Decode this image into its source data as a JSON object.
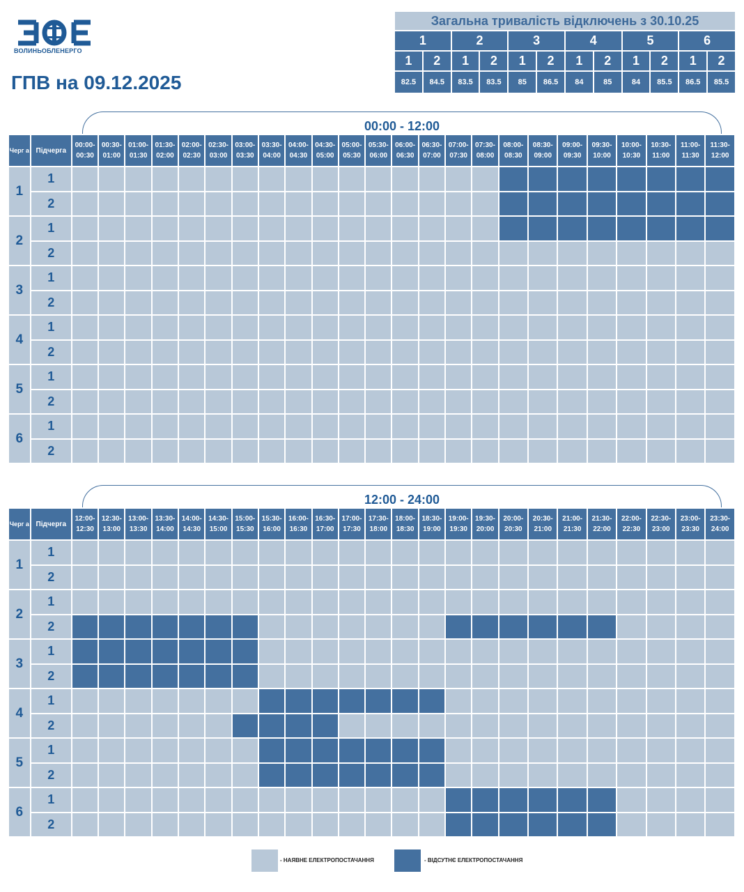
{
  "header": {
    "logo_letters": "ВОЕ",
    "logo_text": "ВОЛИНЬОБЛЕНЕРГО",
    "title": "ГПВ на 09.12.2025"
  },
  "colors": {
    "powered": "#b8c8d8",
    "outage": "#44709f",
    "brand": "#1f5a96"
  },
  "summary": {
    "title": "Загальна тривалість відключень з 30.10.25",
    "queues": [
      "1",
      "2",
      "3",
      "4",
      "5",
      "6"
    ],
    "subqueues": [
      "1",
      "2",
      "1",
      "2",
      "1",
      "2",
      "1",
      "2",
      "1",
      "2",
      "1",
      "2"
    ],
    "values": [
      "82.5",
      "84.5",
      "83.5",
      "83.5",
      "85",
      "86.5",
      "84",
      "85",
      "84",
      "85.5",
      "86.5",
      "85.5"
    ]
  },
  "grid_labels": {
    "queue_header": "Черг а",
    "subqueue_header": "Підчерга"
  },
  "sections": [
    {
      "label": "00:00 - 12:00",
      "slots": [
        [
          "00:00-",
          "00:30"
        ],
        [
          "00:30-",
          "01:00"
        ],
        [
          "01:00-",
          "01:30"
        ],
        [
          "01:30-",
          "02:00"
        ],
        [
          "02:00-",
          "02:30"
        ],
        [
          "02:30-",
          "03:00"
        ],
        [
          "03:00-",
          "03:30"
        ],
        [
          "03:30-",
          "04:00"
        ],
        [
          "04:00-",
          "04:30"
        ],
        [
          "04:30-",
          "05:00"
        ],
        [
          "05:00-",
          "05:30"
        ],
        [
          "05:30-",
          "06:00"
        ],
        [
          "06:00-",
          "06:30"
        ],
        [
          "06:30-",
          "07:00"
        ],
        [
          "07:00-",
          "07:30"
        ],
        [
          "07:30-",
          "08:00"
        ],
        [
          "08:00-",
          "08:30"
        ],
        [
          "08:30-",
          "09:00"
        ],
        [
          "09:00-",
          "09:30"
        ],
        [
          "09:30-",
          "10:00"
        ],
        [
          "10:00-",
          "10:30"
        ],
        [
          "10:30-",
          "11:00"
        ],
        [
          "11:00-",
          "11:30"
        ],
        [
          "11:30-",
          "12:00"
        ]
      ],
      "rows": [
        {
          "q": "1",
          "s": "1",
          "off": [
            16,
            17,
            18,
            19,
            20,
            21,
            22,
            23
          ]
        },
        {
          "q": "1",
          "s": "2",
          "off": [
            16,
            17,
            18,
            19,
            20,
            21,
            22,
            23
          ]
        },
        {
          "q": "2",
          "s": "1",
          "off": [
            16,
            17,
            18,
            19,
            20,
            21,
            22,
            23
          ]
        },
        {
          "q": "2",
          "s": "2",
          "off": []
        },
        {
          "q": "3",
          "s": "1",
          "off": []
        },
        {
          "q": "3",
          "s": "2",
          "off": []
        },
        {
          "q": "4",
          "s": "1",
          "off": []
        },
        {
          "q": "4",
          "s": "2",
          "off": []
        },
        {
          "q": "5",
          "s": "1",
          "off": []
        },
        {
          "q": "5",
          "s": "2",
          "off": []
        },
        {
          "q": "6",
          "s": "1",
          "off": []
        },
        {
          "q": "6",
          "s": "2",
          "off": []
        }
      ]
    },
    {
      "label": "12:00 - 24:00",
      "slots": [
        [
          "12:00-",
          "12:30"
        ],
        [
          "12:30-",
          "13:00"
        ],
        [
          "13:00-",
          "13:30"
        ],
        [
          "13:30-",
          "14:00"
        ],
        [
          "14:00-",
          "14:30"
        ],
        [
          "14:30-",
          "15:00"
        ],
        [
          "15:00-",
          "15:30"
        ],
        [
          "15:30-",
          "16:00"
        ],
        [
          "16:00-",
          "16:30"
        ],
        [
          "16:30-",
          "17:00"
        ],
        [
          "17:00-",
          "17:30"
        ],
        [
          "17:30-",
          "18:00"
        ],
        [
          "18:00-",
          "18:30"
        ],
        [
          "18:30-",
          "19:00"
        ],
        [
          "19:00-",
          "19:30"
        ],
        [
          "19:30-",
          "20:00"
        ],
        [
          "20:00-",
          "20:30"
        ],
        [
          "20:30-",
          "21:00"
        ],
        [
          "21:00-",
          "21:30"
        ],
        [
          "21:30-",
          "22:00"
        ],
        [
          "22:00-",
          "22:30"
        ],
        [
          "22:30-",
          "23:00"
        ],
        [
          "23:00-",
          "23:30"
        ],
        [
          "23:30-",
          "24:00"
        ]
      ],
      "rows": [
        {
          "q": "1",
          "s": "1",
          "off": []
        },
        {
          "q": "1",
          "s": "2",
          "off": []
        },
        {
          "q": "2",
          "s": "1",
          "off": []
        },
        {
          "q": "2",
          "s": "2",
          "off": [
            0,
            1,
            2,
            3,
            4,
            5,
            6,
            14,
            15,
            16,
            17,
            18,
            19
          ]
        },
        {
          "q": "3",
          "s": "1",
          "off": [
            0,
            1,
            2,
            3,
            4,
            5,
            6
          ]
        },
        {
          "q": "3",
          "s": "2",
          "off": [
            0,
            1,
            2,
            3,
            4,
            5,
            6
          ]
        },
        {
          "q": "4",
          "s": "1",
          "off": [
            7,
            8,
            9,
            10,
            11,
            12,
            13
          ]
        },
        {
          "q": "4",
          "s": "2",
          "off": [
            6,
            7,
            8,
            9
          ]
        },
        {
          "q": "5",
          "s": "1",
          "off": [
            7,
            8,
            9,
            10,
            11,
            12,
            13
          ]
        },
        {
          "q": "5",
          "s": "2",
          "off": [
            7,
            8,
            9,
            10,
            11,
            12,
            13
          ]
        },
        {
          "q": "6",
          "s": "1",
          "off": [
            14,
            15,
            16,
            17,
            18,
            19
          ]
        },
        {
          "q": "6",
          "s": "2",
          "off": [
            14,
            15,
            16,
            17,
            18,
            19
          ]
        }
      ]
    }
  ],
  "legend": {
    "powered": "- НАЯВНЕ ЕЛЕКТРОПОСТАЧАННЯ",
    "outage": "- ВІДСУТНЄ ЕЛЕКТРОПОСТАЧАННЯ"
  }
}
